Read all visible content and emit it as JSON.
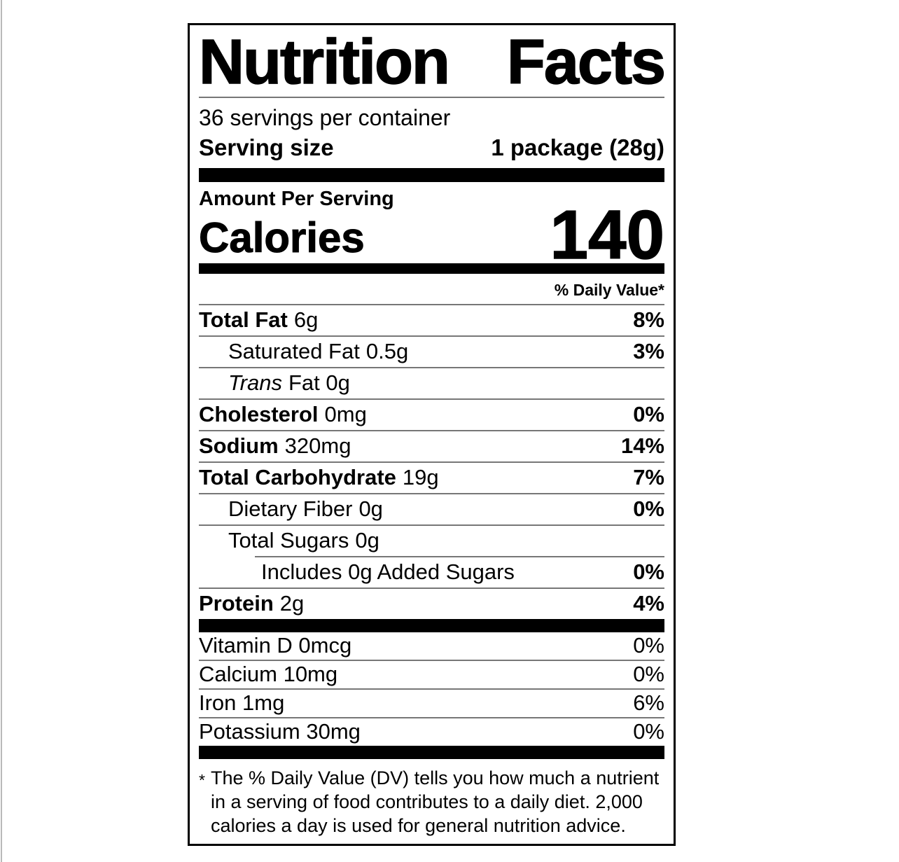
{
  "label": {
    "title_left": "Nutrition",
    "title_right": "Facts",
    "servings_per_container": "36 servings per container",
    "serving_size_label": "Serving size",
    "serving_size_value": "1 package (28g)",
    "amount_per_serving": "Amount Per Serving",
    "calories_label": "Calories",
    "calories_value": "140",
    "daily_value_header": "% Daily Value*",
    "nutrients": [
      {
        "name": "Total Fat",
        "amount": "6g",
        "dv": "8%"
      },
      {
        "name": "Saturated Fat",
        "amount": "0.5g",
        "dv": "3%"
      },
      {
        "name": "Trans",
        "amount": "Fat 0g",
        "dv": ""
      },
      {
        "name": "Cholesterol",
        "amount": "0mg",
        "dv": "0%"
      },
      {
        "name": "Sodium",
        "amount": "320mg",
        "dv": "14%"
      },
      {
        "name": "Total Carbohydrate",
        "amount": "19g",
        "dv": "7%"
      },
      {
        "name": "Dietary Fiber",
        "amount": "0g",
        "dv": "0%"
      },
      {
        "name": "Total Sugars",
        "amount": "0g",
        "dv": ""
      },
      {
        "name": "Includes 0g Added Sugars",
        "amount": "",
        "dv": "0%"
      },
      {
        "name": "Protein",
        "amount": "2g",
        "dv": "4%"
      }
    ],
    "vitamins": [
      {
        "name": "Vitamin D 0mcg",
        "dv": "0%"
      },
      {
        "name": "Calcium 10mg",
        "dv": "0%"
      },
      {
        "name": "Iron 1mg",
        "dv": "6%"
      },
      {
        "name": "Potassium 30mg",
        "dv": "0%"
      }
    ],
    "footnote_marker": "*",
    "footnote_text": "The % Daily Value (DV) tells you how much a nutrient in a serving of food contributes to a daily diet. 2,000 calories a day is used for general nutrition advice."
  },
  "colors": {
    "text": "#000000",
    "thick_bar": "#000000",
    "hairline": "#777777",
    "background": "#ffffff"
  }
}
